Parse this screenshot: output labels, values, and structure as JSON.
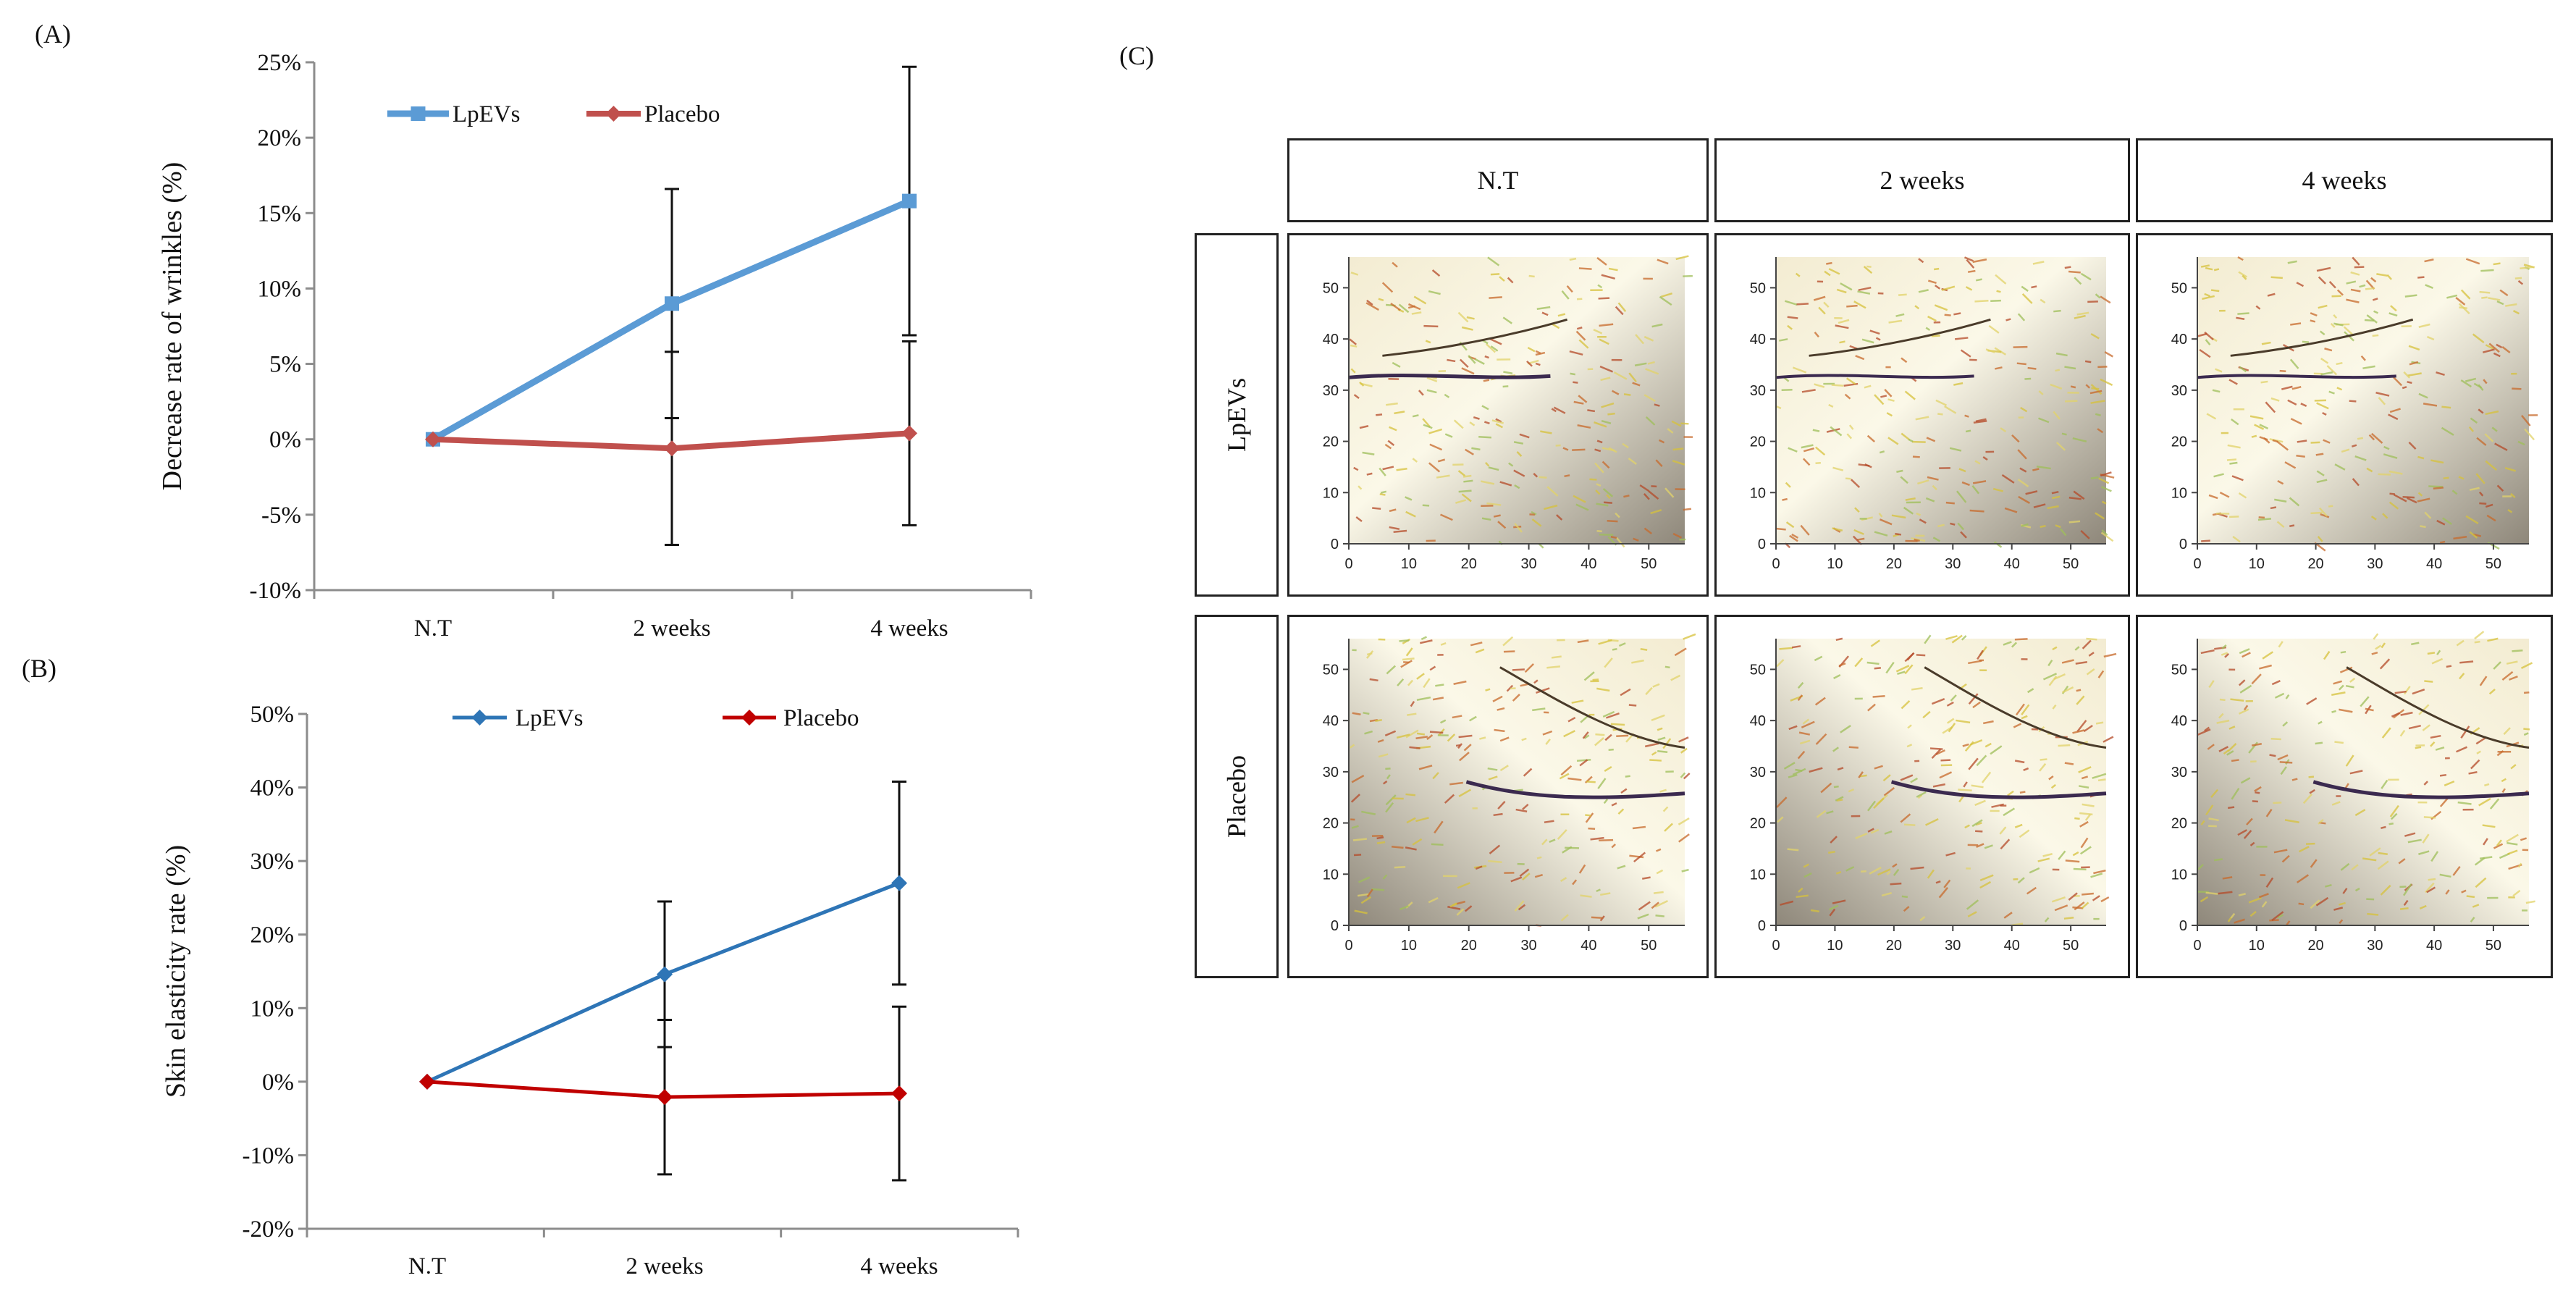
{
  "panels": {
    "a": {
      "label": "(A)"
    },
    "b": {
      "label": "(B)"
    },
    "c": {
      "label": "(C)"
    }
  },
  "chart_data": [
    {
      "id": "A",
      "type": "line",
      "title": "",
      "xlabel": "",
      "ylabel": "Decrease rate of wrinkles (%)",
      "categories": [
        "N.T",
        "2 weeks",
        "4 weeks"
      ],
      "yticks": [
        "-10%",
        "-5%",
        "0%",
        "5%",
        "10%",
        "15%",
        "20%",
        "25%"
      ],
      "ylim": [
        -10,
        25
      ],
      "ytick_values": [
        -10,
        -5,
        0,
        5,
        10,
        15,
        20,
        25
      ],
      "legend_position": "top-left",
      "series": [
        {
          "name": "LpEVs",
          "color": "#5b9bd5",
          "marker": "square",
          "values": [
            0,
            9.0,
            15.8
          ],
          "errors": [
            0,
            7.6,
            8.9
          ]
        },
        {
          "name": "Placebo",
          "color": "#c0504d",
          "marker": "diamond",
          "values": [
            0,
            -0.6,
            0.4
          ],
          "errors": [
            0,
            6.4,
            6.1
          ]
        }
      ]
    },
    {
      "id": "B",
      "type": "line",
      "title": "",
      "xlabel": "",
      "ylabel": "Skin elasticity rate (%)",
      "categories": [
        "N.T",
        "2 weeks",
        "4 weeks"
      ],
      "yticks": [
        "-20%",
        "-10%",
        "0%",
        "10%",
        "20%",
        "30%",
        "40%",
        "50%"
      ],
      "ylim": [
        -20,
        50
      ],
      "ytick_values": [
        -20,
        -10,
        0,
        10,
        20,
        30,
        40,
        50
      ],
      "legend_position": "top-center",
      "series": [
        {
          "name": "LpEVs",
          "color": "#2e75b6",
          "marker": "diamond",
          "values": [
            0,
            14.6,
            27.0
          ],
          "errors": [
            0,
            9.9,
            13.8
          ]
        },
        {
          "name": "Placebo",
          "color": "#c00000",
          "marker": "diamond",
          "values": [
            0,
            -2.1,
            -1.6
          ],
          "errors": [
            0,
            10.5,
            11.8
          ]
        }
      ]
    }
  ],
  "image_grid": {
    "columns": [
      "N.T",
      "2 weeks",
      "4 weeks"
    ],
    "rows": [
      "LpEVs",
      "Placebo"
    ],
    "axis_ticks": [
      "0",
      "10",
      "20",
      "30",
      "40",
      "50"
    ]
  }
}
